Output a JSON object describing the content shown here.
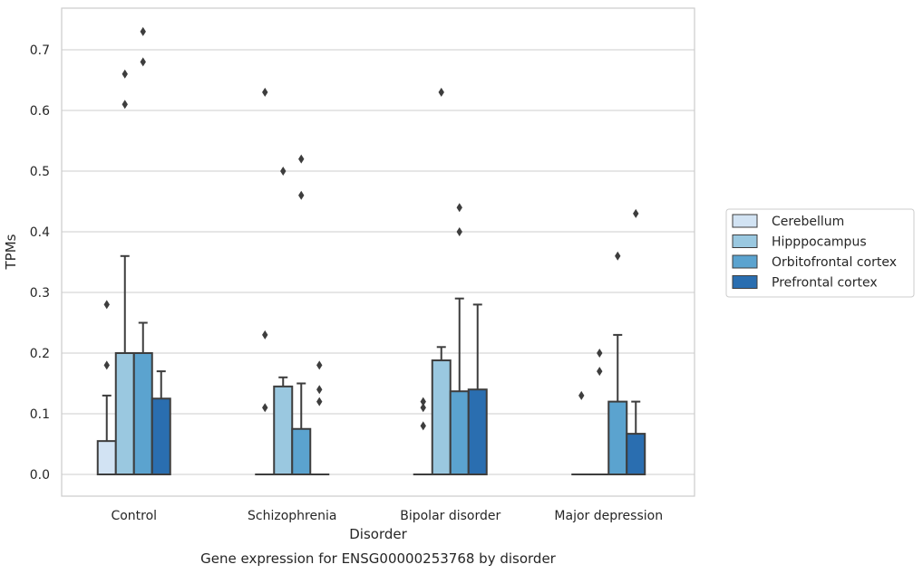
{
  "chart_data": {
    "type": "bar",
    "title": "Gene expression for ENSG00000253768 by disorder",
    "xlabel": "Disorder",
    "ylabel": "TPMs",
    "ylim": [
      -0.035,
      0.768
    ],
    "yticks": [
      "0.0",
      "0.1",
      "0.2",
      "0.3",
      "0.4",
      "0.5",
      "0.6",
      "0.7"
    ],
    "grid": "horizontal",
    "legend_position": "right",
    "categories": [
      "Control",
      "Schizophrenia",
      "Bipolar disorder",
      "Major depression"
    ],
    "series": [
      {
        "name": "Cerebellum",
        "color": "#d2e3f3",
        "values": [
          0.055,
          0.0,
          0.0,
          0.0
        ],
        "whisker_high": [
          0.13,
          null,
          null,
          null
        ],
        "outliers": [
          [
            0.18,
            0.28
          ],
          [
            0.11,
            0.23,
            0.63
          ],
          [
            0.08,
            0.11,
            0.12
          ],
          [
            0.13
          ]
        ]
      },
      {
        "name": "Hipppocampus",
        "color": "#9ac8e0",
        "values": [
          0.2,
          0.145,
          0.188,
          0.0
        ],
        "whisker_high": [
          0.36,
          0.16,
          0.21,
          null
        ],
        "outliers": [
          [
            0.61,
            0.66
          ],
          [
            0.5
          ],
          [
            0.63
          ],
          [
            0.17,
            0.2
          ]
        ]
      },
      {
        "name": "Orbitofrontal cortex",
        "color": "#5ba3cf",
        "values": [
          0.2,
          0.075,
          0.137,
          0.12
        ],
        "whisker_high": [
          0.25,
          0.15,
          0.29,
          0.23
        ],
        "outliers": [
          [
            0.68,
            0.73
          ],
          [
            0.46,
            0.52
          ],
          [
            0.4,
            0.44
          ],
          [
            0.36
          ]
        ]
      },
      {
        "name": "Prefrontal cortex",
        "color": "#2a6eb0",
        "values": [
          0.125,
          0.0,
          0.14,
          0.067
        ],
        "whisker_high": [
          0.17,
          null,
          0.28,
          0.12
        ],
        "outliers": [
          [],
          [
            0.12,
            0.14,
            0.18
          ],
          [],
          [
            0.43
          ]
        ]
      }
    ]
  }
}
